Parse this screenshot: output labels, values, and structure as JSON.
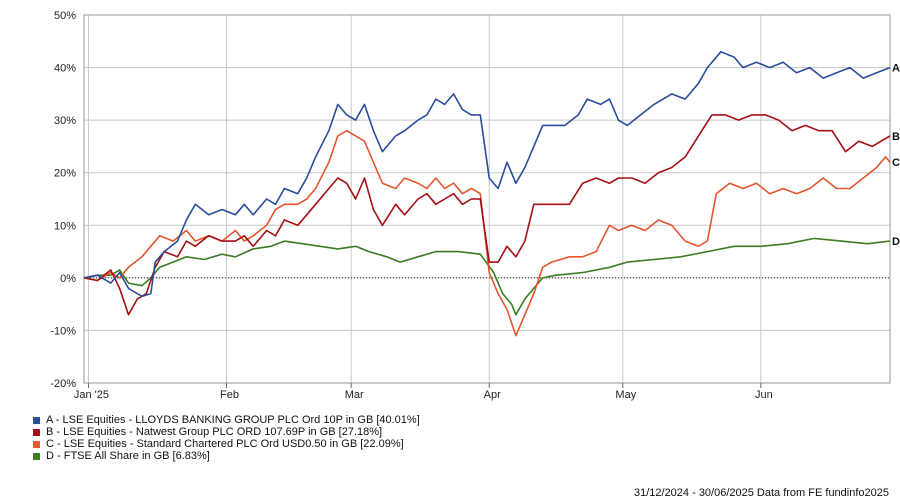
{
  "chart_data": {
    "type": "line",
    "ylim": [
      -20,
      50
    ],
    "yticks": [
      "-20%",
      "-10%",
      "0%",
      "10%",
      "20%",
      "30%",
      "40%",
      "50%"
    ],
    "ytick_values": [
      -20,
      -10,
      0,
      10,
      20,
      30,
      40,
      50
    ],
    "xlim": [
      "2024-12-31",
      "2025-06-30"
    ],
    "xticks": [
      {
        "label": "Jan '25",
        "date": "2025-01-01"
      },
      {
        "label": "Feb",
        "date": "2025-02-01"
      },
      {
        "label": "Mar",
        "date": "2025-03-01"
      },
      {
        "label": "Apr",
        "date": "2025-04-01"
      },
      {
        "label": "May",
        "date": "2025-05-01"
      },
      {
        "label": "Jun",
        "date": "2025-06-01"
      }
    ],
    "grid": true,
    "series": [
      {
        "letter": "A",
        "name": "A - LSE Equities - LLOYDS BANKING GROUP PLC Ord 10P in GB [40.01%]",
        "color": "#2a4d9c",
        "points": [
          [
            "2024-12-31",
            0
          ],
          [
            "2025-01-03",
            0.5
          ],
          [
            "2025-01-06",
            -1
          ],
          [
            "2025-01-08",
            1
          ],
          [
            "2025-01-10",
            -2
          ],
          [
            "2025-01-13",
            -3.5
          ],
          [
            "2025-01-15",
            -3
          ],
          [
            "2025-01-16",
            3
          ],
          [
            "2025-01-18",
            5
          ],
          [
            "2025-01-21",
            7
          ],
          [
            "2025-01-23",
            11
          ],
          [
            "2025-01-25",
            14
          ],
          [
            "2025-01-28",
            12
          ],
          [
            "2025-01-31",
            13
          ],
          [
            "2025-02-03",
            12
          ],
          [
            "2025-02-05",
            14
          ],
          [
            "2025-02-07",
            12
          ],
          [
            "2025-02-10",
            15
          ],
          [
            "2025-02-12",
            14
          ],
          [
            "2025-02-14",
            17
          ],
          [
            "2025-02-17",
            16
          ],
          [
            "2025-02-19",
            19
          ],
          [
            "2025-02-21",
            23
          ],
          [
            "2025-02-24",
            28
          ],
          [
            "2025-02-26",
            33
          ],
          [
            "2025-02-28",
            31
          ],
          [
            "2025-03-02",
            30
          ],
          [
            "2025-03-04",
            33
          ],
          [
            "2025-03-06",
            28
          ],
          [
            "2025-03-08",
            24
          ],
          [
            "2025-03-11",
            27
          ],
          [
            "2025-03-13",
            28
          ],
          [
            "2025-03-16",
            30
          ],
          [
            "2025-03-18",
            31
          ],
          [
            "2025-03-20",
            34
          ],
          [
            "2025-03-22",
            33
          ],
          [
            "2025-03-24",
            35
          ],
          [
            "2025-03-26",
            32
          ],
          [
            "2025-03-28",
            31
          ],
          [
            "2025-03-30",
            31
          ],
          [
            "2025-04-01",
            19
          ],
          [
            "2025-04-03",
            17
          ],
          [
            "2025-04-05",
            22
          ],
          [
            "2025-04-07",
            18
          ],
          [
            "2025-04-09",
            21
          ],
          [
            "2025-04-11",
            25
          ],
          [
            "2025-04-13",
            29
          ],
          [
            "2025-04-15",
            29
          ],
          [
            "2025-04-18",
            29
          ],
          [
            "2025-04-21",
            31
          ],
          [
            "2025-04-23",
            34
          ],
          [
            "2025-04-26",
            33
          ],
          [
            "2025-04-28",
            34
          ],
          [
            "2025-04-30",
            30
          ],
          [
            "2025-05-02",
            29
          ],
          [
            "2025-05-05",
            31
          ],
          [
            "2025-05-08",
            33
          ],
          [
            "2025-05-12",
            35
          ],
          [
            "2025-05-15",
            34
          ],
          [
            "2025-05-18",
            37
          ],
          [
            "2025-05-20",
            40
          ],
          [
            "2025-05-23",
            43
          ],
          [
            "2025-05-26",
            42
          ],
          [
            "2025-05-28",
            40
          ],
          [
            "2025-05-31",
            41
          ],
          [
            "2025-06-03",
            40
          ],
          [
            "2025-06-06",
            41
          ],
          [
            "2025-06-09",
            39
          ],
          [
            "2025-06-12",
            40
          ],
          [
            "2025-06-15",
            38
          ],
          [
            "2025-06-18",
            39
          ],
          [
            "2025-06-21",
            40
          ],
          [
            "2025-06-24",
            38
          ],
          [
            "2025-06-27",
            39
          ],
          [
            "2025-06-30",
            40
          ]
        ]
      },
      {
        "letter": "B",
        "name": "B - LSE Equities - Natwest Group PLC ORD 107.69P in GB [27.18%]",
        "color": "#a50f15",
        "points": [
          [
            "2024-12-31",
            0
          ],
          [
            "2025-01-03",
            -0.5
          ],
          [
            "2025-01-06",
            1.5
          ],
          [
            "2025-01-08",
            -2
          ],
          [
            "2025-01-10",
            -7
          ],
          [
            "2025-01-12",
            -4
          ],
          [
            "2025-01-14",
            -3
          ],
          [
            "2025-01-16",
            2
          ],
          [
            "2025-01-18",
            5
          ],
          [
            "2025-01-21",
            4
          ],
          [
            "2025-01-23",
            7
          ],
          [
            "2025-01-25",
            6
          ],
          [
            "2025-01-28",
            8
          ],
          [
            "2025-01-31",
            7
          ],
          [
            "2025-02-03",
            7
          ],
          [
            "2025-02-05",
            8
          ],
          [
            "2025-02-07",
            6
          ],
          [
            "2025-02-10",
            9
          ],
          [
            "2025-02-12",
            8
          ],
          [
            "2025-02-14",
            11
          ],
          [
            "2025-02-17",
            10
          ],
          [
            "2025-02-19",
            12
          ],
          [
            "2025-02-21",
            14
          ],
          [
            "2025-02-24",
            17
          ],
          [
            "2025-02-26",
            19
          ],
          [
            "2025-02-28",
            18
          ],
          [
            "2025-03-02",
            15
          ],
          [
            "2025-03-04",
            19
          ],
          [
            "2025-03-06",
            13
          ],
          [
            "2025-03-08",
            10
          ],
          [
            "2025-03-11",
            14
          ],
          [
            "2025-03-13",
            12
          ],
          [
            "2025-03-16",
            15
          ],
          [
            "2025-03-18",
            16
          ],
          [
            "2025-03-20",
            14
          ],
          [
            "2025-03-22",
            15
          ],
          [
            "2025-03-24",
            16
          ],
          [
            "2025-03-26",
            14
          ],
          [
            "2025-03-28",
            15
          ],
          [
            "2025-03-30",
            15
          ],
          [
            "2025-04-01",
            3
          ],
          [
            "2025-04-03",
            3
          ],
          [
            "2025-04-05",
            6
          ],
          [
            "2025-04-07",
            4
          ],
          [
            "2025-04-09",
            7
          ],
          [
            "2025-04-11",
            14
          ],
          [
            "2025-04-13",
            14
          ],
          [
            "2025-04-16",
            14
          ],
          [
            "2025-04-19",
            14
          ],
          [
            "2025-04-22",
            18
          ],
          [
            "2025-04-25",
            19
          ],
          [
            "2025-04-28",
            18
          ],
          [
            "2025-04-30",
            19
          ],
          [
            "2025-05-03",
            19
          ],
          [
            "2025-05-06",
            18
          ],
          [
            "2025-05-09",
            20
          ],
          [
            "2025-05-12",
            21
          ],
          [
            "2025-05-15",
            23
          ],
          [
            "2025-05-18",
            27
          ],
          [
            "2025-05-21",
            31
          ],
          [
            "2025-05-24",
            31
          ],
          [
            "2025-05-27",
            30
          ],
          [
            "2025-05-30",
            31
          ],
          [
            "2025-06-02",
            31
          ],
          [
            "2025-06-05",
            30
          ],
          [
            "2025-06-08",
            28
          ],
          [
            "2025-06-11",
            29
          ],
          [
            "2025-06-14",
            28
          ],
          [
            "2025-06-17",
            28
          ],
          [
            "2025-06-20",
            24
          ],
          [
            "2025-06-23",
            26
          ],
          [
            "2025-06-26",
            25
          ],
          [
            "2025-06-30",
            27
          ]
        ]
      },
      {
        "letter": "C",
        "name": "C - LSE Equities - Standard Chartered PLC Ord USD0.50 in GB [22.09%]",
        "color": "#e4572e",
        "points": [
          [
            "2024-12-31",
            0
          ],
          [
            "2025-01-03",
            -0.5
          ],
          [
            "2025-01-06",
            1
          ],
          [
            "2025-01-08",
            0
          ],
          [
            "2025-01-10",
            2
          ],
          [
            "2025-01-13",
            4
          ],
          [
            "2025-01-15",
            6
          ],
          [
            "2025-01-17",
            8
          ],
          [
            "2025-01-20",
            7
          ],
          [
            "2025-01-23",
            9
          ],
          [
            "2025-01-25",
            7
          ],
          [
            "2025-01-28",
            8
          ],
          [
            "2025-01-31",
            7
          ],
          [
            "2025-02-03",
            9
          ],
          [
            "2025-02-05",
            7
          ],
          [
            "2025-02-07",
            8
          ],
          [
            "2025-02-10",
            10
          ],
          [
            "2025-02-12",
            13
          ],
          [
            "2025-02-14",
            14
          ],
          [
            "2025-02-17",
            14
          ],
          [
            "2025-02-19",
            15
          ],
          [
            "2025-02-21",
            17
          ],
          [
            "2025-02-24",
            22
          ],
          [
            "2025-02-26",
            27
          ],
          [
            "2025-02-28",
            28
          ],
          [
            "2025-03-02",
            27
          ],
          [
            "2025-03-04",
            26
          ],
          [
            "2025-03-06",
            22
          ],
          [
            "2025-03-08",
            18
          ],
          [
            "2025-03-11",
            17
          ],
          [
            "2025-03-13",
            19
          ],
          [
            "2025-03-16",
            18
          ],
          [
            "2025-03-18",
            17
          ],
          [
            "2025-03-20",
            19
          ],
          [
            "2025-03-22",
            17
          ],
          [
            "2025-03-24",
            18
          ],
          [
            "2025-03-26",
            16
          ],
          [
            "2025-03-28",
            17
          ],
          [
            "2025-03-30",
            16
          ],
          [
            "2025-04-01",
            1
          ],
          [
            "2025-04-03",
            -3
          ],
          [
            "2025-04-05",
            -6
          ],
          [
            "2025-04-07",
            -11
          ],
          [
            "2025-04-09",
            -7
          ],
          [
            "2025-04-11",
            -3
          ],
          [
            "2025-04-13",
            2
          ],
          [
            "2025-04-15",
            3
          ],
          [
            "2025-04-17",
            3.5
          ],
          [
            "2025-04-19",
            4
          ],
          [
            "2025-04-22",
            4
          ],
          [
            "2025-04-25",
            5
          ],
          [
            "2025-04-28",
            10
          ],
          [
            "2025-04-30",
            9
          ],
          [
            "2025-05-03",
            10
          ],
          [
            "2025-05-06",
            9
          ],
          [
            "2025-05-09",
            11
          ],
          [
            "2025-05-12",
            10
          ],
          [
            "2025-05-15",
            7
          ],
          [
            "2025-05-18",
            6
          ],
          [
            "2025-05-20",
            7
          ],
          [
            "2025-05-22",
            16
          ],
          [
            "2025-05-25",
            18
          ],
          [
            "2025-05-28",
            17
          ],
          [
            "2025-05-31",
            18
          ],
          [
            "2025-06-03",
            16
          ],
          [
            "2025-06-06",
            17
          ],
          [
            "2025-06-09",
            16
          ],
          [
            "2025-06-12",
            17
          ],
          [
            "2025-06-15",
            19
          ],
          [
            "2025-06-18",
            17
          ],
          [
            "2025-06-21",
            17
          ],
          [
            "2025-06-24",
            19
          ],
          [
            "2025-06-27",
            21
          ],
          [
            "2025-06-29",
            23
          ],
          [
            "2025-06-30",
            22
          ]
        ]
      },
      {
        "letter": "D",
        "name": "D - FTSE All Share in GB [6.83%]",
        "color": "#3a7d22",
        "points": [
          [
            "2024-12-31",
            0
          ],
          [
            "2025-01-03",
            0.5
          ],
          [
            "2025-01-06",
            0.5
          ],
          [
            "2025-01-08",
            1.5
          ],
          [
            "2025-01-10",
            -1
          ],
          [
            "2025-01-13",
            -1.5
          ],
          [
            "2025-01-15",
            0
          ],
          [
            "2025-01-17",
            2
          ],
          [
            "2025-01-20",
            3
          ],
          [
            "2025-01-23",
            4
          ],
          [
            "2025-01-27",
            3.5
          ],
          [
            "2025-01-31",
            4.5
          ],
          [
            "2025-02-03",
            4
          ],
          [
            "2025-02-07",
            5.5
          ],
          [
            "2025-02-11",
            6
          ],
          [
            "2025-02-14",
            7
          ],
          [
            "2025-02-18",
            6.5
          ],
          [
            "2025-02-22",
            6
          ],
          [
            "2025-02-26",
            5.5
          ],
          [
            "2025-03-02",
            6
          ],
          [
            "2025-03-05",
            5
          ],
          [
            "2025-03-09",
            4
          ],
          [
            "2025-03-12",
            3
          ],
          [
            "2025-03-16",
            4
          ],
          [
            "2025-03-20",
            5
          ],
          [
            "2025-03-25",
            5
          ],
          [
            "2025-03-30",
            4.5
          ],
          [
            "2025-04-02",
            1
          ],
          [
            "2025-04-04",
            -3
          ],
          [
            "2025-04-06",
            -5
          ],
          [
            "2025-04-07",
            -7
          ],
          [
            "2025-04-09",
            -4
          ],
          [
            "2025-04-11",
            -2
          ],
          [
            "2025-04-13",
            0
          ],
          [
            "2025-04-16",
            0.5
          ],
          [
            "2025-04-22",
            1
          ],
          [
            "2025-04-28",
            2
          ],
          [
            "2025-05-02",
            3
          ],
          [
            "2025-05-08",
            3.5
          ],
          [
            "2025-05-14",
            4
          ],
          [
            "2025-05-20",
            5
          ],
          [
            "2025-05-26",
            6
          ],
          [
            "2025-06-01",
            6
          ],
          [
            "2025-06-07",
            6.5
          ],
          [
            "2025-06-13",
            7.5
          ],
          [
            "2025-06-19",
            7
          ],
          [
            "2025-06-25",
            6.5
          ],
          [
            "2025-06-30",
            7
          ]
        ]
      }
    ]
  },
  "footer": {
    "text": "31/12/2024 - 30/06/2025 Data from FE fundinfo2025"
  }
}
